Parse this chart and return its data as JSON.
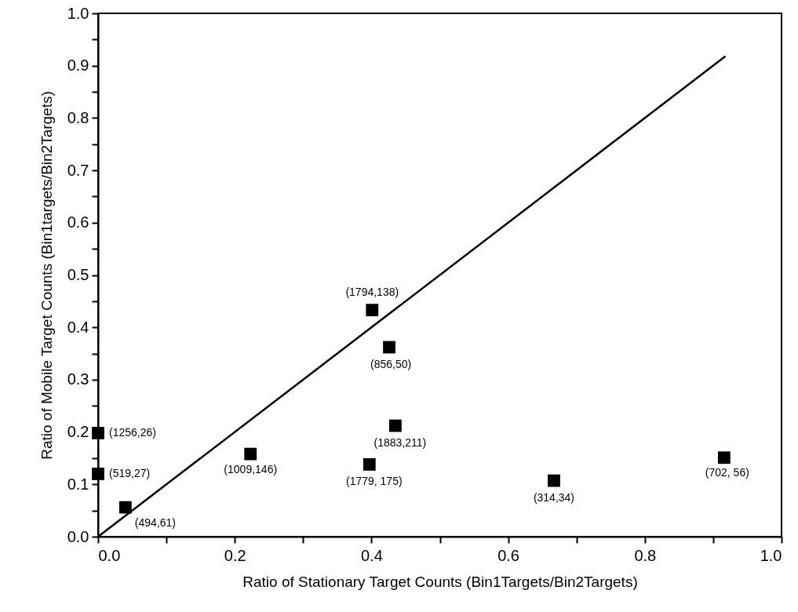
{
  "chart_data": {
    "type": "scatter",
    "xlabel": "Ratio of Stationary Target Counts (Bin1Targets/Bin2Targets)",
    "ylabel": "Ratio of Mobile Target Counts (Bin1targets/Bin2Targets)",
    "xlim": [
      0,
      1
    ],
    "ylim": [
      0,
      1
    ],
    "xticks": [
      {
        "value": 0,
        "label": "0.0"
      },
      {
        "value": 0.1,
        "label": null
      },
      {
        "value": 0.2,
        "label": "0.2"
      },
      {
        "value": 0.3,
        "label": null
      },
      {
        "value": 0.4,
        "label": "0.4"
      },
      {
        "value": 0.5,
        "label": null
      },
      {
        "value": 0.6,
        "label": "0.6"
      },
      {
        "value": 0.7,
        "label": null
      },
      {
        "value": 0.8,
        "label": "0.8"
      },
      {
        "value": 0.9,
        "label": null
      },
      {
        "value": 1,
        "label": "1.0"
      }
    ],
    "yticks": [
      {
        "value": 0,
        "label": "0.0"
      },
      {
        "value": 0.05,
        "label": null
      },
      {
        "value": 0.1,
        "label": "0.1"
      },
      {
        "value": 0.15,
        "label": null
      },
      {
        "value": 0.2,
        "label": "0.2"
      },
      {
        "value": 0.25,
        "label": null
      },
      {
        "value": 0.3,
        "label": "0.3"
      },
      {
        "value": 0.35,
        "label": null
      },
      {
        "value": 0.4,
        "label": "0.4"
      },
      {
        "value": 0.45,
        "label": null
      },
      {
        "value": 0.5,
        "label": "0.5"
      },
      {
        "value": 0.55,
        "label": null
      },
      {
        "value": 0.6,
        "label": "0.6"
      },
      {
        "value": 0.65,
        "label": null
      },
      {
        "value": 0.7,
        "label": "0.7"
      },
      {
        "value": 0.75,
        "label": null
      },
      {
        "value": 0.8,
        "label": "0.8"
      },
      {
        "value": 0.85,
        "label": null
      },
      {
        "value": 0.9,
        "label": "0.9"
      },
      {
        "value": 0.95,
        "label": null
      },
      {
        "value": 1,
        "label": "1.0"
      }
    ],
    "grid": false,
    "marker": "square",
    "series": [
      {
        "color": "#000000",
        "x": [
          0.401,
          0.426,
          0,
          0,
          0.04,
          0.223,
          0.397,
          0.435,
          0.667,
          0.916
        ],
        "values": [
          0.433,
          0.362,
          0.198,
          0.12,
          0.056,
          0.158,
          0.138,
          0.212,
          0.107,
          0.151
        ]
      },
      {
        "type": "line",
        "color": "#000000",
        "line_style": "solid",
        "marker": "none",
        "x": [
          0,
          0.917
        ],
        "values": [
          0,
          0.917
        ]
      }
    ],
    "annotations": [
      {
        "text": "(1794,138)",
        "x": 0.401,
        "y": 0.433
      },
      {
        "text": "(856,50)",
        "x": 0.426,
        "y": 0.362
      },
      {
        "text": "(1256,26)",
        "x": 0,
        "y": 0.198
      },
      {
        "text": "(519,27)",
        "x": 0,
        "y": 0.12
      },
      {
        "text": "(494,61)",
        "x": 0.04,
        "y": 0.056
      },
      {
        "text": "(1009,146)",
        "x": 0.223,
        "y": 0.158
      },
      {
        "text": "(1779, 175)",
        "x": 0.397,
        "y": 0.138
      },
      {
        "text": "(1883,211)",
        "x": 0.435,
        "y": 0.212
      },
      {
        "text": "(314,34)",
        "x": 0.667,
        "y": 0.107
      },
      {
        "text": "(702, 56)",
        "x": 0.916,
        "y": 0.151
      }
    ]
  }
}
